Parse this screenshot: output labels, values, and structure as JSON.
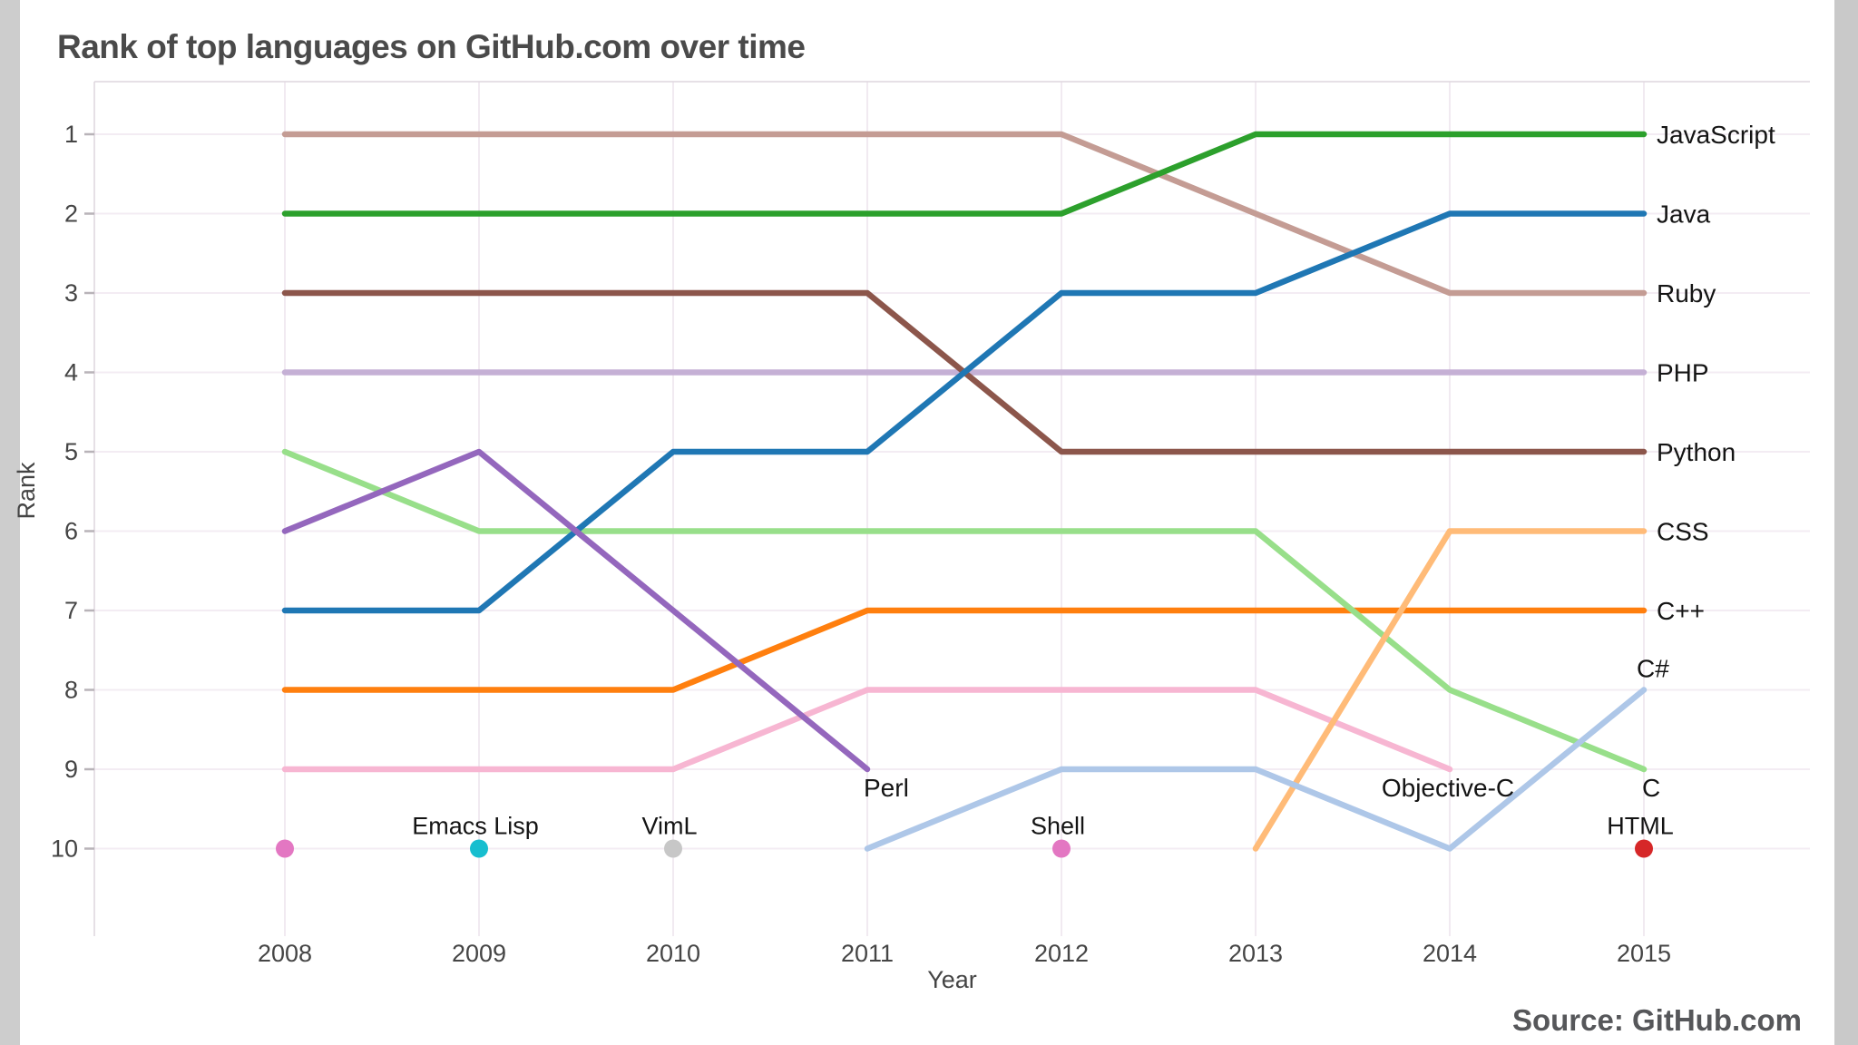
{
  "chart_data": {
    "type": "line",
    "variant": "bump-rank-chart",
    "title": "Rank of top languages on GitHub.com over time",
    "source": "Source: GitHub.com",
    "xlabel": "Year",
    "ylabel": "Rank",
    "years": [
      2008,
      2009,
      2010,
      2011,
      2012,
      2013,
      2014,
      2015
    ],
    "rank_ticks": [
      1,
      2,
      3,
      4,
      5,
      6,
      7,
      8,
      9,
      10
    ],
    "ylim": [
      1,
      10
    ],
    "y_inverted": true,
    "grid": true,
    "legend_position": "right-inline-labels",
    "colors": {
      "grid_horizontal": "#f3ecf3",
      "grid_vertical": "#f1eaf1",
      "axis_border": "#ddd6dd",
      "tick_mark": "#b8b3b8",
      "tick_text": "#454545",
      "label_text": "#141414"
    },
    "series": [
      {
        "id": "javascript",
        "name": "JavaScript",
        "color": "#2ca02c",
        "z": 10,
        "ranks": [
          2,
          2,
          2,
          2,
          2,
          1,
          1,
          1
        ],
        "label": {
          "dx": 14,
          "dy": 10,
          "anchor": "start"
        }
      },
      {
        "id": "java",
        "name": "Java",
        "color": "#1f77b4",
        "z": 8,
        "ranks": [
          7,
          7,
          5,
          5,
          3,
          3,
          2,
          2
        ],
        "label": {
          "dx": 14,
          "dy": 10,
          "anchor": "start"
        }
      },
      {
        "id": "ruby",
        "name": "Ruby",
        "color": "#c49c94",
        "z": 1,
        "ranks": [
          1,
          1,
          1,
          1,
          1,
          2,
          3,
          3
        ],
        "label": {
          "dx": 14,
          "dy": 10,
          "anchor": "start"
        }
      },
      {
        "id": "php",
        "name": "PHP",
        "color": "#c5b0d5",
        "z": 0,
        "ranks": [
          4,
          4,
          4,
          4,
          4,
          4,
          4,
          4
        ],
        "label": {
          "dx": 14,
          "dy": 10,
          "anchor": "start"
        }
      },
      {
        "id": "python",
        "name": "Python",
        "color": "#8c564b",
        "z": 2,
        "ranks": [
          3,
          3,
          3,
          3,
          5,
          5,
          5,
          5
        ],
        "label": {
          "dx": 14,
          "dy": 10,
          "anchor": "start"
        }
      },
      {
        "id": "css",
        "name": "CSS",
        "color": "#ffbb78",
        "z": 6,
        "ranks": [
          null,
          null,
          null,
          null,
          null,
          10,
          6,
          6
        ],
        "label": {
          "dx": 14,
          "dy": 10,
          "anchor": "start"
        }
      },
      {
        "id": "cpp",
        "name": "C++",
        "color": "#ff7f0e",
        "z": 3,
        "ranks": [
          8,
          8,
          8,
          7,
          7,
          7,
          7,
          7
        ],
        "label": {
          "dx": 14,
          "dy": 10,
          "anchor": "start"
        }
      },
      {
        "id": "csharp",
        "name": "C#",
        "color": "#aec7e8",
        "z": 7,
        "ranks": [
          null,
          null,
          null,
          10,
          9,
          9,
          10,
          8
        ],
        "label": {
          "dx": -8,
          "dy": -14,
          "anchor": "start"
        }
      },
      {
        "id": "c",
        "name": "C",
        "color": "#98df8a",
        "z": 5,
        "ranks": [
          5,
          6,
          6,
          6,
          6,
          6,
          8,
          9
        ],
        "label": {
          "dx": -2,
          "dy": 30,
          "anchor": "start"
        }
      },
      {
        "id": "perl",
        "name": "Perl",
        "color": "#9467bd",
        "z": 9,
        "ranks": [
          6,
          5,
          7,
          9,
          null,
          null,
          null,
          null
        ],
        "label": {
          "dx": -4,
          "dy": 30,
          "anchor": "start"
        }
      },
      {
        "id": "objective-c",
        "name": "Objective-C",
        "color": "#f7b6d2",
        "z": 4,
        "ranks": [
          9,
          9,
          9,
          8,
          8,
          8,
          9,
          null
        ],
        "label": {
          "dx": -2,
          "dy": 30,
          "anchor": "middle"
        }
      }
    ],
    "markers": [
      {
        "id": "shell-2008",
        "year": 2008,
        "rank": 10,
        "color": "#e377c2",
        "label": ""
      },
      {
        "id": "emacs-lisp",
        "year": 2009,
        "rank": 10,
        "color": "#17becf",
        "label": "Emacs Lisp"
      },
      {
        "id": "viml",
        "year": 2010,
        "rank": 10,
        "color": "#c7c7c7",
        "label": "VimL"
      },
      {
        "id": "shell",
        "year": 2012,
        "rank": 10,
        "color": "#e377c2",
        "label": "Shell"
      },
      {
        "id": "html",
        "year": 2015,
        "rank": 10,
        "color": "#d62728",
        "label": "HTML"
      }
    ]
  }
}
